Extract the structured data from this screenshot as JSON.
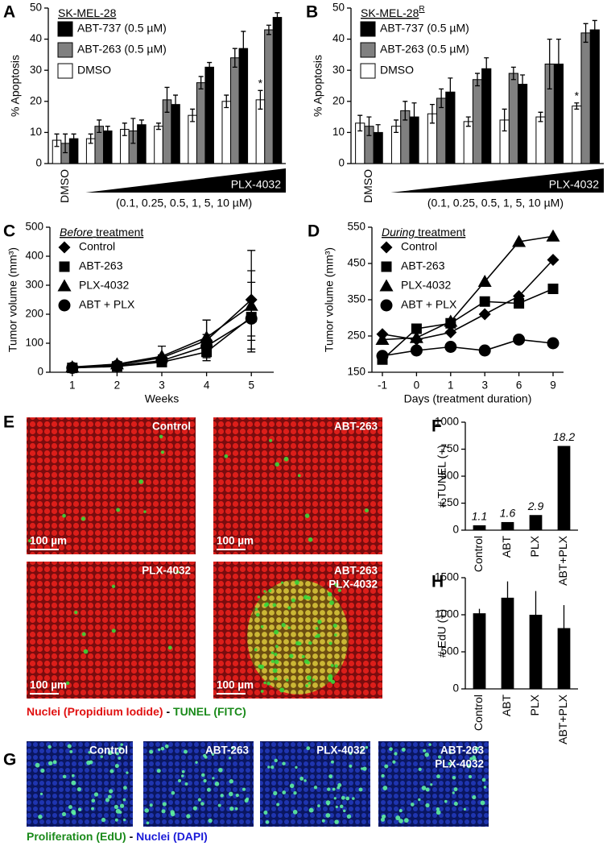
{
  "chart_data": [
    {
      "letter": "A",
      "type": "bar",
      "title": "SK-MEL-28",
      "ylabel": "% Apoptosis",
      "categories": [
        "DMSO",
        null,
        null,
        null,
        null,
        null,
        null
      ],
      "group_label": "PLX-4032",
      "xlabel": "(0.1, 0.25, 0.5, 1, 5, 10 µM)",
      "annotation": "*",
      "ylim": [
        0,
        50
      ],
      "yticks": [
        0,
        10,
        20,
        30,
        40,
        50
      ],
      "series": [
        {
          "name": "ABT-737 (0.5 µM)",
          "color": "#000000",
          "values": [
            8,
            10.5,
            12.5,
            19,
            31,
            37,
            47
          ],
          "errors": [
            1.5,
            1.5,
            1.5,
            3,
            1.5,
            5.5,
            1.5
          ]
        },
        {
          "name": "ABT-263 (0.5 µM)",
          "color": "#808080",
          "values": [
            6.5,
            12,
            10.5,
            20.5,
            26,
            34,
            43
          ],
          "errors": [
            3,
            2,
            4,
            4,
            2,
            3,
            1.5
          ]
        },
        {
          "name": "DMSO",
          "color": "#ffffff",
          "values": [
            7.5,
            8,
            11,
            12,
            15.5,
            20,
            20.5
          ],
          "errors": [
            2,
            1.5,
            2,
            1,
            2,
            2,
            3
          ]
        }
      ]
    },
    {
      "letter": "B",
      "type": "bar",
      "title": "SK-MEL-28",
      "title_superscript": "R",
      "ylabel": "% Apoptosis",
      "categories": [
        "DMSO",
        null,
        null,
        null,
        null,
        null,
        null
      ],
      "group_label": "PLX-4032",
      "xlabel": "(0.1, 0.25, 0.5, 1, 5, 10 µM)",
      "annotation": "*",
      "ylim": [
        0,
        50
      ],
      "yticks": [
        0,
        10,
        20,
        30,
        40,
        50
      ],
      "series": [
        {
          "name": "ABT-737 (0.5 µM)",
          "color": "#000000",
          "values": [
            10,
            15,
            23,
            30.5,
            25.5,
            32,
            43
          ],
          "errors": [
            2.5,
            4.5,
            4.5,
            3.5,
            3,
            8,
            3
          ]
        },
        {
          "name": "ABT-263 (0.5 µM)",
          "color": "#808080",
          "values": [
            12,
            17,
            21,
            27,
            29,
            32,
            42
          ],
          "errors": [
            3,
            3,
            3,
            2,
            2,
            8,
            3
          ]
        },
        {
          "name": "DMSO",
          "color": "#ffffff",
          "values": [
            13,
            12,
            16,
            13.5,
            14,
            15,
            18.5
          ],
          "errors": [
            2.5,
            2,
            3,
            1.5,
            3.5,
            1.5,
            1
          ]
        }
      ]
    },
    {
      "letter": "C",
      "type": "line",
      "title_emphasis": "Before",
      "title": "treatment",
      "ylabel": "Tumor volume (mm³)",
      "xlabel": "Weeks",
      "x": [
        1,
        2,
        3,
        4,
        5
      ],
      "xlim": [
        0.5,
        5.5
      ],
      "xticks": [
        1,
        2,
        3,
        4,
        5
      ],
      "ylim": [
        0,
        500
      ],
      "yticks": [
        0,
        100,
        200,
        300,
        400,
        500
      ],
      "series": [
        {
          "name": "Control",
          "marker": "diamond",
          "color": "#000000",
          "values": [
            15,
            25,
            50,
            110,
            250
          ],
          "errors": [
            3,
            5,
            10,
            70,
            170
          ]
        },
        {
          "name": "ABT-263",
          "marker": "square",
          "color": "#000000",
          "values": [
            15,
            20,
            35,
            70,
            190
          ],
          "errors": [
            3,
            5,
            8,
            30,
            120
          ]
        },
        {
          "name": "PLX-4032",
          "marker": "triangle",
          "color": "#000000",
          "values": [
            18,
            28,
            55,
            120,
            230
          ],
          "errors": [
            3,
            8,
            35,
            60,
            120
          ]
        },
        {
          "name": "ABT + PLX",
          "marker": "circle",
          "color": "#000000",
          "values": [
            15,
            22,
            40,
            90,
            185
          ],
          "errors": [
            2,
            5,
            10,
            40,
            60
          ]
        }
      ]
    },
    {
      "letter": "D",
      "type": "line",
      "title_emphasis": "During",
      "title": "treatment",
      "ylabel": "Tumor volume (mm³)",
      "xlabel": "Days (treatment duration)",
      "categories": [
        "-1",
        "0",
        "1",
        "3",
        "6",
        "9"
      ],
      "ylim": [
        150,
        550
      ],
      "yticks": [
        150,
        250,
        350,
        450,
        550
      ],
      "series": [
        {
          "name": "Control",
          "marker": "diamond",
          "color": "#000000",
          "values": [
            255,
            240,
            260,
            310,
            360,
            460
          ]
        },
        {
          "name": "ABT-263",
          "marker": "square",
          "color": "#000000",
          "values": [
            185,
            270,
            285,
            345,
            340,
            380
          ]
        },
        {
          "name": "PLX-4032",
          "marker": "triangle",
          "color": "#000000",
          "values": [
            240,
            245,
            290,
            400,
            510,
            525
          ]
        },
        {
          "name": "ABT + PLX",
          "marker": "circle",
          "color": "#000000",
          "values": [
            195,
            210,
            220,
            210,
            240,
            230
          ]
        }
      ]
    },
    {
      "letter": "F",
      "type": "bar",
      "ylabel": "# TUNEL (+)",
      "categories": [
        "Control",
        "ABT",
        "PLX",
        "ABT+PLX"
      ],
      "values": [
        45,
        75,
        140,
        780
      ],
      "annotations": [
        "1.1",
        "1.6",
        "2.9",
        "18.2"
      ],
      "color": "#000000",
      "ylim": [
        0,
        1000
      ],
      "yticks": [
        0,
        250,
        500,
        750,
        1000
      ]
    },
    {
      "letter": "H",
      "type": "bar",
      "ylabel": "# EdU (+)",
      "categories": [
        "Control",
        "ABT",
        "PLX",
        "ABT+PLX"
      ],
      "values": [
        1020,
        1230,
        1000,
        820
      ],
      "errors": [
        60,
        220,
        320,
        310
      ],
      "color": "#000000",
      "ylim": [
        0,
        1500
      ],
      "yticks": [
        0,
        500,
        1000,
        1500
      ]
    }
  ],
  "images": {
    "E": {
      "letter": "E",
      "panels": [
        {
          "label": [
            "Control"
          ]
        },
        {
          "label": [
            "ABT-263"
          ]
        },
        {
          "label": [
            "PLX-4032"
          ]
        },
        {
          "label": [
            "ABT-263",
            "PLX-4032"
          ]
        }
      ],
      "scale_bar": "100 µm",
      "caption": [
        "Nuclei (Propidium Iodide)",
        "-",
        "TUNEL (FITC)"
      ]
    },
    "G": {
      "letter": "G",
      "panels": [
        {
          "label": [
            "Control"
          ]
        },
        {
          "label": [
            "ABT-263"
          ]
        },
        {
          "label": [
            "PLX-4032"
          ]
        },
        {
          "label": [
            "ABT-263",
            "PLX-4032"
          ]
        }
      ],
      "caption": [
        "Proliferation (EdU)",
        "-",
        "Nuclei (DAPI)"
      ]
    }
  }
}
